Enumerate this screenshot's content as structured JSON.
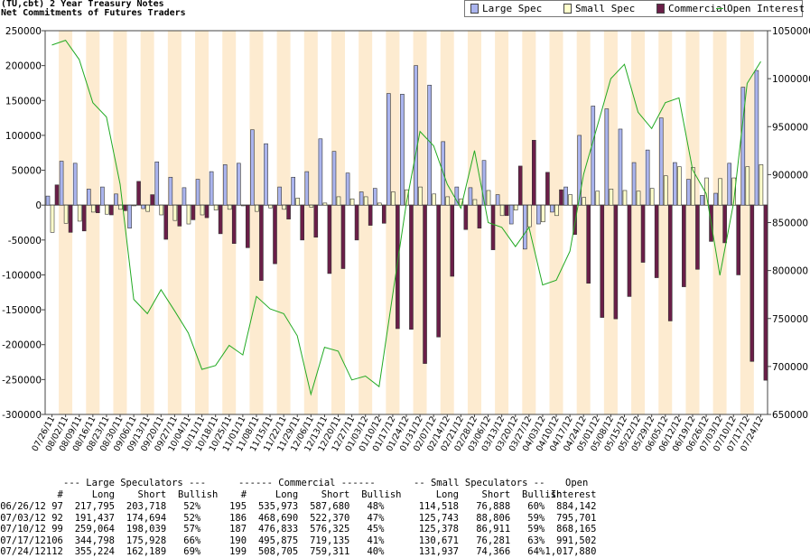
{
  "header": {
    "title_line1": "(TU,cbt) 2 Year Treasury Notes",
    "title_line2": "Net Commitments of Futures Traders"
  },
  "legend": {
    "items": [
      {
        "label": "Large Spec",
        "color": "#aab4ee"
      },
      {
        "label": "Small Spec",
        "color": "#ffffcc"
      },
      {
        "label": "Commercial",
        "color": "#6a1e48"
      },
      {
        "label": "Open Interest",
        "color": "#22aa22"
      }
    ]
  },
  "chart_data": {
    "type": "bar",
    "categories": [
      "07/26/11",
      "08/02/11",
      "08/09/11",
      "08/16/11",
      "08/23/11",
      "08/30/11",
      "09/06/11",
      "09/13/11",
      "09/20/11",
      "09/27/11",
      "10/04/11",
      "10/11/11",
      "10/18/11",
      "10/25/11",
      "11/01/11",
      "11/08/11",
      "11/15/11",
      "11/22/11",
      "11/29/11",
      "12/06/11",
      "12/13/11",
      "12/20/11",
      "12/27/11",
      "01/03/12",
      "01/10/12",
      "01/17/12",
      "01/24/12",
      "01/31/12",
      "02/07/12",
      "02/14/12",
      "02/21/12",
      "02/28/12",
      "03/06/12",
      "03/13/12",
      "03/20/12",
      "03/27/12",
      "04/03/12",
      "04/10/12",
      "04/17/12",
      "04/24/12",
      "05/01/12",
      "05/08/12",
      "05/15/12",
      "05/22/12",
      "05/29/12",
      "06/05/12",
      "06/12/12",
      "06/19/12",
      "06/26/12",
      "07/03/12",
      "07/10/12",
      "07/17/12",
      "07/24/12"
    ],
    "series": [
      {
        "name": "Large Spec",
        "color": "#aab4ee",
        "values": [
          13000,
          63000,
          60000,
          23000,
          26000,
          16000,
          -33000,
          -5000,
          62000,
          40000,
          25000,
          37000,
          48000,
          58000,
          60000,
          108000,
          88000,
          26000,
          40000,
          48000,
          95000,
          77000,
          46000,
          19000,
          24000,
          160000,
          159000,
          200000,
          172000,
          91000,
          26000,
          25000,
          64000,
          15000,
          -27000,
          -63000,
          -27000,
          -10000,
          26000,
          100000,
          142000,
          138000,
          109000,
          61000,
          79000,
          125000,
          61000,
          37000,
          14000,
          17000,
          60000,
          169000,
          193000
        ]
      },
      {
        "name": "Small Spec",
        "color": "#ffffcc",
        "values": [
          -39000,
          -26000,
          -23000,
          -10000,
          -13000,
          -6000,
          -1000,
          -9000,
          -14000,
          -22000,
          -27000,
          -14000,
          -7000,
          -6000,
          -1000,
          -9000,
          -4000,
          -6000,
          10000,
          -3000,
          3000,
          12000,
          9000,
          12000,
          3000,
          19000,
          22000,
          26000,
          16000,
          12000,
          9000,
          8000,
          21000,
          -15000,
          -7000,
          -31000,
          -24000,
          -15000,
          15000,
          11000,
          20000,
          23000,
          21000,
          20000,
          24000,
          42000,
          55000,
          54000,
          39000,
          38000,
          39000,
          55000,
          58000
        ]
      },
      {
        "name": "Commercial",
        "color": "#6a1e48",
        "values": [
          29000,
          -39000,
          -37000,
          -11000,
          -14000,
          -8000,
          34000,
          15000,
          -49000,
          -30000,
          -21000,
          -18000,
          -41000,
          -55000,
          -61000,
          -108000,
          -84000,
          -20000,
          -50000,
          -46000,
          -98000,
          -91000,
          -50000,
          -29000,
          -26000,
          -177000,
          -178000,
          -227000,
          -189000,
          -102000,
          -35000,
          -33000,
          -64000,
          -15000,
          56000,
          93000,
          47000,
          22000,
          -42000,
          -112000,
          -161000,
          -163000,
          -131000,
          -82000,
          -104000,
          -166000,
          -117000,
          -92000,
          -52000,
          -54000,
          -100000,
          -224000,
          -251000
        ]
      },
      {
        "name": "Open Interest",
        "color": "#22aa22",
        "axis": "right",
        "values": [
          1035000,
          1040000,
          1020000,
          975000,
          960000,
          890000,
          770000,
          755000,
          780000,
          758000,
          735000,
          697000,
          701000,
          722000,
          712000,
          773000,
          760000,
          755000,
          732000,
          671000,
          720000,
          716000,
          686000,
          690000,
          679000,
          775000,
          870000,
          945000,
          930000,
          890000,
          865000,
          925000,
          850000,
          845000,
          825000,
          845000,
          785000,
          790000,
          820000,
          900000,
          950000,
          1000000,
          1015000,
          965000,
          948000,
          975000,
          980000,
          905000,
          880000,
          795000,
          870000,
          995000,
          1017880
        ]
      }
    ],
    "ylim": [
      -300000,
      250000
    ],
    "yticks": [
      "250000",
      "200000",
      "150000",
      "100000",
      "50000",
      "0",
      "-50000",
      "-100000",
      "-150000",
      "-200000",
      "-250000",
      "-300000"
    ],
    "y2lim": [
      650000,
      1050000
    ],
    "y2ticks": [
      "1050000",
      "1000000",
      "950000",
      "900000",
      "850000",
      "800000",
      "750000",
      "700000",
      "650000"
    ],
    "grid": false,
    "legend_position": "top-right"
  },
  "table": {
    "group_headers": {
      "large": "--- Large Speculators ---",
      "commercial": "------ Commercial ------",
      "small": "-- Small Speculators --",
      "open_top": "Open"
    },
    "col_headers": {
      "num1": "#",
      "long1": "Long",
      "short1": "Short",
      "bull1": "Bullish",
      "num2": "#",
      "long2": "Long",
      "short2": "Short",
      "bull2": "Bullish",
      "long3": "Long",
      "short3": "Short",
      "bull3": "Bullish",
      "interest": "Interest"
    },
    "rows": [
      {
        "date": "06/26/12",
        "n1": "97",
        "l1": "217,795",
        "s1": "203,718",
        "b1": "52%",
        "n2": "195",
        "l2": "535,973",
        "s2": "587,680",
        "b2": "48%",
        "l3": "114,518",
        "s3": "76,888",
        "b3": "60%",
        "oi": "884,142"
      },
      {
        "date": "07/03/12",
        "n1": "92",
        "l1": "191,437",
        "s1": "174,694",
        "b1": "52%",
        "n2": "186",
        "l2": "468,690",
        "s2": "522,370",
        "b2": "47%",
        "l3": "125,743",
        "s3": "88,806",
        "b3": "59%",
        "oi": "795,701"
      },
      {
        "date": "07/10/12",
        "n1": "99",
        "l1": "259,064",
        "s1": "198,039",
        "b1": "57%",
        "n2": "187",
        "l2": "476,833",
        "s2": "576,325",
        "b2": "45%",
        "l3": "125,378",
        "s3": "86,911",
        "b3": "59%",
        "oi": "868,165"
      },
      {
        "date": "07/17/12",
        "n1": "106",
        "l1": "344,798",
        "s1": "175,928",
        "b1": "66%",
        "n2": "190",
        "l2": "495,875",
        "s2": "719,135",
        "b2": "41%",
        "l3": "130,671",
        "s3": "76,281",
        "b3": "63%",
        "oi": "991,502"
      },
      {
        "date": "07/24/12",
        "n1": "112",
        "l1": "355,224",
        "s1": "162,189",
        "b1": "69%",
        "n2": "199",
        "l2": "508,705",
        "s2": "759,311",
        "b2": "40%",
        "l3": "131,937",
        "s3": "74,366",
        "b3": "64%",
        "oi": "1,017,880"
      }
    ]
  }
}
